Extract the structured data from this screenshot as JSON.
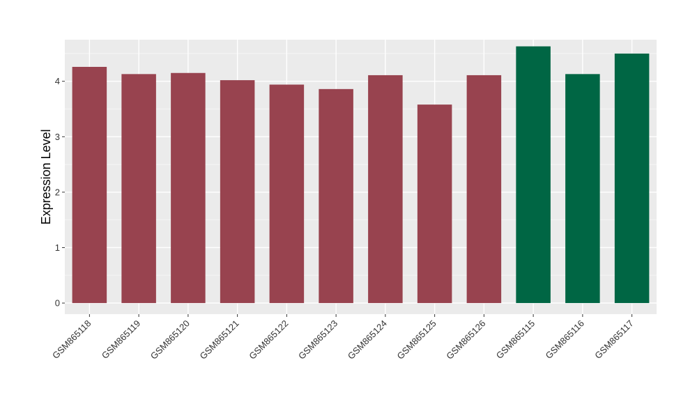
{
  "chart_data": {
    "type": "bar",
    "title": "",
    "xlabel": "",
    "ylabel": "Expression Level",
    "ylim": [
      -0.2,
      4.75
    ],
    "yticks": [
      0,
      1,
      2,
      3,
      4
    ],
    "grid": true,
    "background": "#EBEBEB",
    "categories": [
      "GSM865118",
      "GSM865119",
      "GSM865120",
      "GSM865121",
      "GSM865122",
      "GSM865123",
      "GSM865124",
      "GSM865125",
      "GSM865126",
      "GSM865115",
      "GSM865116",
      "GSM865117"
    ],
    "values": [
      4.26,
      4.13,
      4.15,
      4.02,
      3.94,
      3.86,
      4.11,
      3.58,
      4.11,
      4.63,
      4.13,
      4.5
    ],
    "bar_colors": [
      "#98434F",
      "#98434F",
      "#98434F",
      "#98434F",
      "#98434F",
      "#98434F",
      "#98434F",
      "#98434F",
      "#98434F",
      "#006644",
      "#006644",
      "#006644"
    ]
  }
}
